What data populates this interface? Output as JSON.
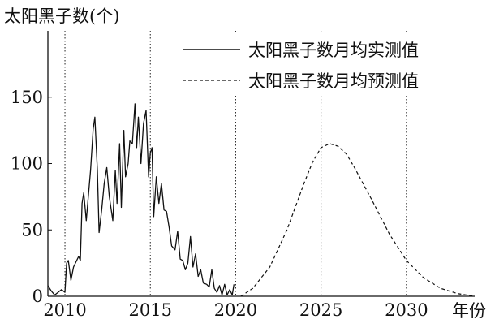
{
  "chart_data": {
    "type": "line",
    "ylabel": "太阳黑子数(个)",
    "xlabel": "年份",
    "xlim": [
      2009,
      2034
    ],
    "ylim": [
      0,
      200
    ],
    "xticks": [
      2010,
      2015,
      2020,
      2025,
      2030
    ],
    "yticks": [
      0,
      50,
      100,
      150
    ],
    "legend_position": "top-right",
    "grid": "vertical dotted lines at each x tick",
    "series": [
      {
        "name": "太阳黑子数月均实测值",
        "style": "solid",
        "color": "#111111",
        "points": [
          [
            2009.0,
            8
          ],
          [
            2009.2,
            4
          ],
          [
            2009.4,
            1
          ],
          [
            2009.6,
            3
          ],
          [
            2009.8,
            5
          ],
          [
            2010.0,
            3
          ],
          [
            2010.1,
            25
          ],
          [
            2010.2,
            27
          ],
          [
            2010.35,
            12
          ],
          [
            2010.5,
            22
          ],
          [
            2010.8,
            30
          ],
          [
            2010.9,
            27
          ],
          [
            2011.0,
            70
          ],
          [
            2011.1,
            78
          ],
          [
            2011.25,
            57
          ],
          [
            2011.5,
            95
          ],
          [
            2011.65,
            126
          ],
          [
            2011.75,
            135
          ],
          [
            2011.9,
            95
          ],
          [
            2012.0,
            48
          ],
          [
            2012.15,
            65
          ],
          [
            2012.3,
            85
          ],
          [
            2012.45,
            97
          ],
          [
            2012.6,
            75
          ],
          [
            2012.8,
            57
          ],
          [
            2012.95,
            95
          ],
          [
            2013.05,
            70
          ],
          [
            2013.2,
            115
          ],
          [
            2013.3,
            67
          ],
          [
            2013.45,
            125
          ],
          [
            2013.55,
            90
          ],
          [
            2013.7,
            100
          ],
          [
            2013.8,
            117
          ],
          [
            2013.95,
            115
          ],
          [
            2014.1,
            145
          ],
          [
            2014.2,
            112
          ],
          [
            2014.3,
            135
          ],
          [
            2014.45,
            100
          ],
          [
            2014.6,
            130
          ],
          [
            2014.75,
            140
          ],
          [
            2014.9,
            90
          ],
          [
            2015.0,
            108
          ],
          [
            2015.1,
            112
          ],
          [
            2015.2,
            60
          ],
          [
            2015.35,
            90
          ],
          [
            2015.5,
            70
          ],
          [
            2015.65,
            85
          ],
          [
            2015.8,
            65
          ],
          [
            2015.95,
            64
          ],
          [
            2016.1,
            52
          ],
          [
            2016.25,
            38
          ],
          [
            2016.45,
            35
          ],
          [
            2016.6,
            49
          ],
          [
            2016.75,
            28
          ],
          [
            2016.9,
            27
          ],
          [
            2017.05,
            20
          ],
          [
            2017.2,
            25
          ],
          [
            2017.35,
            45
          ],
          [
            2017.5,
            22
          ],
          [
            2017.65,
            32
          ],
          [
            2017.8,
            15
          ],
          [
            2017.95,
            20
          ],
          [
            2018.1,
            10
          ],
          [
            2018.3,
            9
          ],
          [
            2018.45,
            7
          ],
          [
            2018.6,
            20
          ],
          [
            2018.75,
            6
          ],
          [
            2018.9,
            3
          ],
          [
            2019.05,
            8
          ],
          [
            2019.2,
            1
          ],
          [
            2019.35,
            9
          ],
          [
            2019.5,
            1
          ],
          [
            2019.65,
            5
          ],
          [
            2019.8,
            1
          ],
          [
            2019.9,
            9
          ]
        ]
      },
      {
        "name": "太阳黑子数月均预测值",
        "style": "dashed",
        "color": "#111111",
        "points": [
          [
            2020.3,
            0
          ],
          [
            2021.0,
            6
          ],
          [
            2022.0,
            22
          ],
          [
            2023.0,
            50
          ],
          [
            2024.0,
            85
          ],
          [
            2024.5,
            101
          ],
          [
            2025.0,
            112
          ],
          [
            2025.5,
            115
          ],
          [
            2026.0,
            113
          ],
          [
            2026.5,
            107
          ],
          [
            2027.0,
            96
          ],
          [
            2028.0,
            72
          ],
          [
            2029.0,
            47
          ],
          [
            2030.0,
            27
          ],
          [
            2031.0,
            14
          ],
          [
            2032.0,
            6
          ],
          [
            2033.0,
            2
          ],
          [
            2034.0,
            0
          ]
        ]
      }
    ]
  }
}
